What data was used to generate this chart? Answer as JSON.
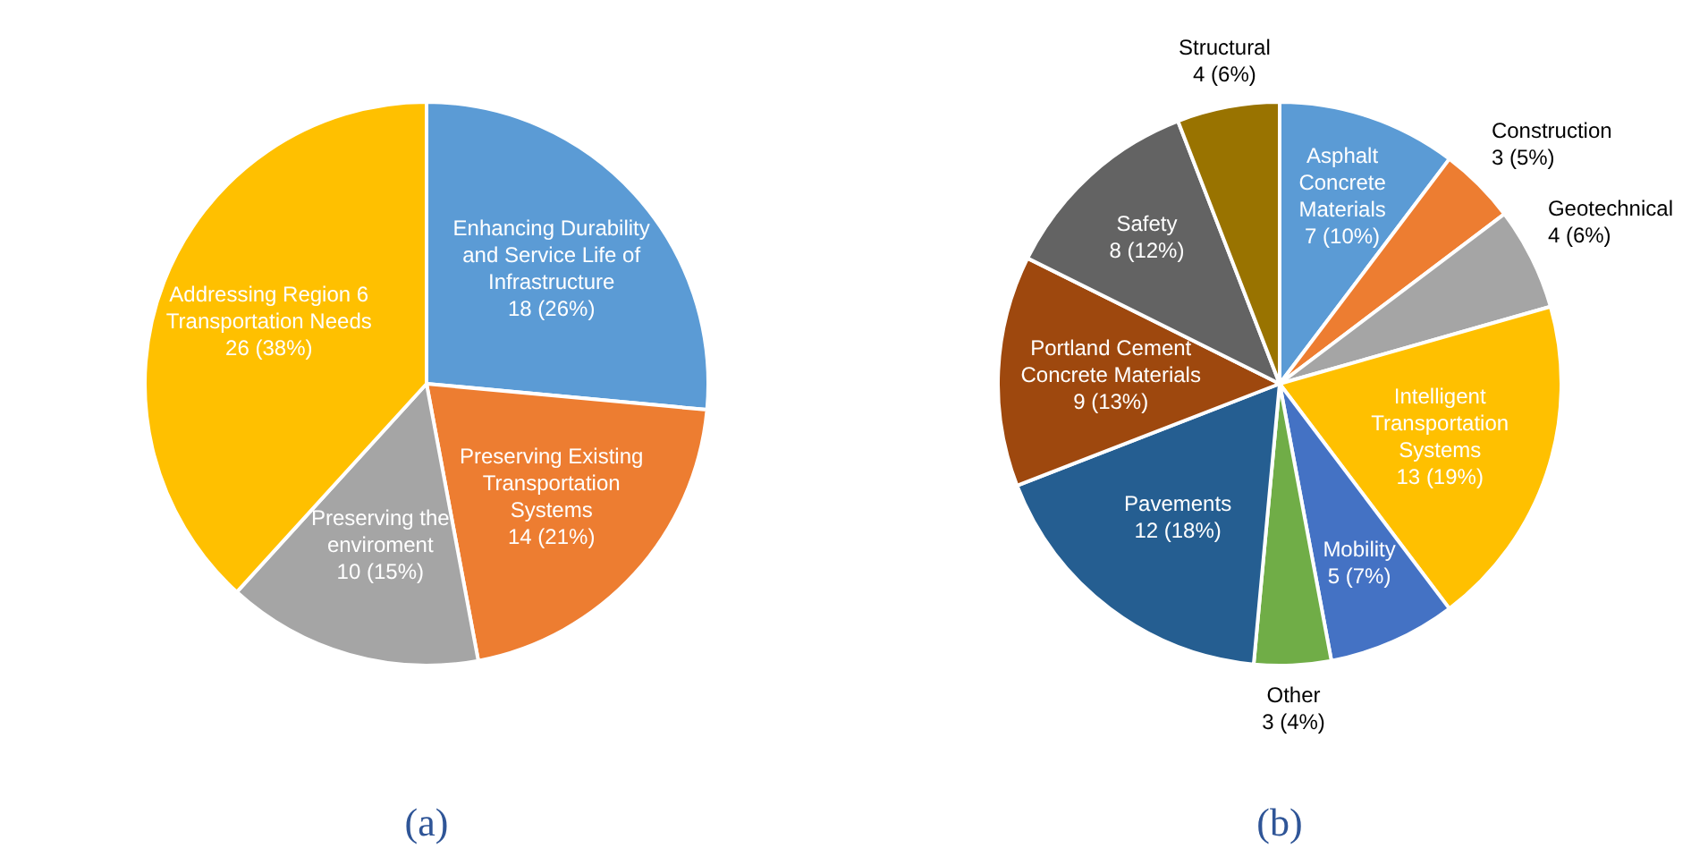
{
  "chart_data": [
    {
      "type": "pie",
      "categories": [
        "Enhancing Durability and Service Life of Infrastructure",
        "Preserving Existing Transportation Systems",
        "Preserving the enviroment",
        "Addressing Region 6 Transportation Needs"
      ],
      "values": [
        18,
        14,
        10,
        26
      ],
      "colors": [
        "#5b9bd5",
        "#ed7d31",
        "#a5a5a5",
        "#ffc000"
      ],
      "value_labels": [
        "18 (26%)",
        "14 (21%)",
        "10 (15%)",
        "26 (38%)"
      ],
      "annotations": [
        "(a)"
      ]
    },
    {
      "type": "pie",
      "categories": [
        "Asphalt Concrete Materials",
        "Construction",
        "Geotechnical",
        "Intelligent Transportation Systems",
        "Mobility",
        "Other",
        "Pavements",
        "Portland Cement Concrete Materials",
        "Safety",
        "Structural"
      ],
      "values": [
        7,
        3,
        4,
        13,
        5,
        3,
        12,
        9,
        8,
        4
      ],
      "colors": [
        "#5b9bd5",
        "#ed7d31",
        "#a5a5a5",
        "#ffc000",
        "#4472c4",
        "#70ad47",
        "#255e91",
        "#9e480e",
        "#636363",
        "#997300"
      ],
      "value_labels": [
        "7 (10%)",
        "3 (5%)",
        "4 (6%)",
        "13 (19%)",
        "5 (7%)",
        "3 (4%)",
        "12 (18%)",
        "9 (13%)",
        "8 (12%)",
        "4 (6%)"
      ],
      "annotations": [
        "(b)"
      ]
    }
  ]
}
